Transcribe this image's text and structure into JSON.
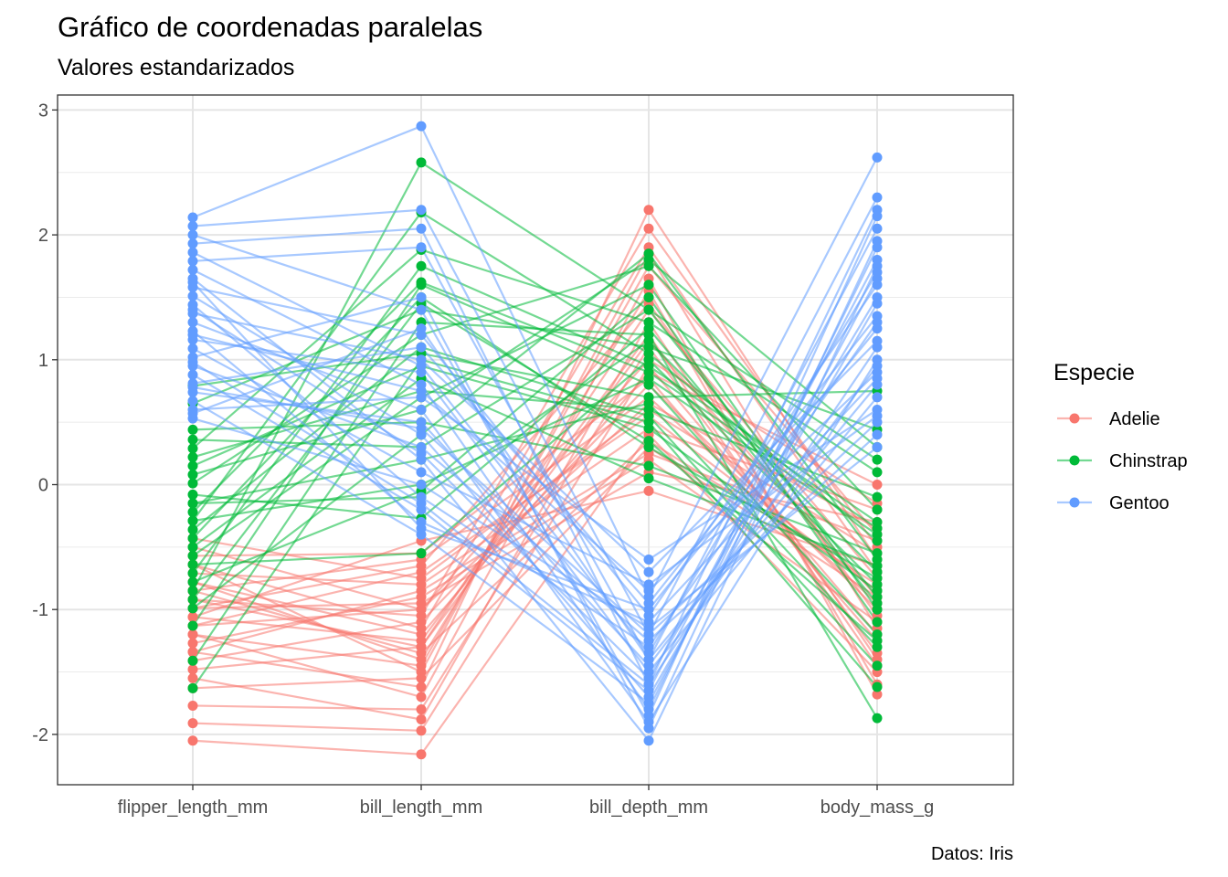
{
  "chart_data": {
    "type": "line",
    "title": "Gráfico de coordenadas paralelas",
    "subtitle": "Valores estandarizados",
    "caption": "Datos: Iris",
    "xlabel": "",
    "ylabel": "",
    "categories": [
      "flipper_length_mm",
      "bill_length_mm",
      "bill_depth_mm",
      "body_mass_g"
    ],
    "ylim": [
      -2.4,
      3.1
    ],
    "yticks": [
      3,
      2,
      1,
      0,
      -1,
      -2
    ],
    "grid": true,
    "legend": {
      "title": "Especie",
      "placement": "right",
      "entries": [
        {
          "name": "Adelie",
          "color": "#F8766D"
        },
        {
          "name": "Chinstrap",
          "color": "#00BA38"
        },
        {
          "name": "Gentoo",
          "color": "#619CFF"
        }
      ]
    },
    "series": [
      {
        "name": "Adelie",
        "color": "#F8766D",
        "lines": [
          [
            -2.05,
            -2.16,
            0.4,
            -1.5
          ],
          [
            -1.91,
            -1.97,
            0.95,
            -1.2
          ],
          [
            -1.77,
            -1.8,
            1.1,
            -1.35
          ],
          [
            -1.63,
            -1.55,
            0.3,
            -0.9
          ],
          [
            -1.48,
            -1.3,
            1.4,
            -0.75
          ],
          [
            -1.41,
            -1.1,
            0.8,
            -1.0
          ],
          [
            -1.34,
            -1.62,
            2.2,
            -0.6
          ],
          [
            -1.27,
            -0.9,
            0.2,
            -1.1
          ],
          [
            -1.2,
            -1.45,
            1.75,
            -0.4
          ],
          [
            -1.13,
            -0.7,
            0.55,
            -0.85
          ],
          [
            -1.06,
            -1.25,
            1.2,
            -1.45
          ],
          [
            -0.99,
            -0.95,
            0.1,
            -0.3
          ],
          [
            -0.92,
            -1.05,
            2.05,
            -0.5
          ],
          [
            -0.85,
            -0.6,
            0.7,
            -0.95
          ],
          [
            -0.78,
            -1.4,
            1.55,
            -1.6
          ],
          [
            -0.71,
            -0.8,
            0.45,
            -0.2
          ],
          [
            -0.64,
            -1.15,
            1.9,
            -0.7
          ],
          [
            -0.57,
            -0.55,
            0.85,
            -1.25
          ],
          [
            -1.55,
            -1.88,
            1.3,
            -1.4
          ],
          [
            -1.06,
            -0.45,
            -0.05,
            -0.65
          ],
          [
            -0.5,
            -1.0,
            1.0,
            -0.15
          ],
          [
            -0.43,
            -0.75,
            0.6,
            -0.55
          ],
          [
            -1.2,
            -1.7,
            1.65,
            -1.68
          ],
          [
            -0.85,
            -1.35,
            0.35,
            -0.8
          ],
          [
            -0.99,
            -0.65,
            1.45,
            -1.05
          ],
          [
            -0.78,
            -1.2,
            0.9,
            0.0
          ],
          [
            -1.34,
            -0.85,
            0.25,
            -0.45
          ],
          [
            -0.64,
            -1.5,
            1.85,
            -1.15
          ],
          [
            -1.13,
            -1.0,
            0.65,
            -0.35
          ],
          [
            -0.92,
            -1.3,
            1.15,
            -0.9
          ]
        ]
      },
      {
        "name": "Chinstrap",
        "color": "#00BA38",
        "lines": [
          [
            -1.63,
            1.0,
            0.5,
            -1.62
          ],
          [
            -1.41,
            1.3,
            1.2,
            -1.87
          ],
          [
            -1.13,
            1.6,
            0.8,
            -1.2
          ],
          [
            -0.99,
            0.4,
            1.85,
            -0.6
          ],
          [
            -0.85,
            2.58,
            1.4,
            -0.9
          ],
          [
            -0.71,
            1.75,
            0.95,
            -0.3
          ],
          [
            -0.57,
            0.7,
            1.6,
            -1.0
          ],
          [
            -0.43,
            1.5,
            0.3,
            -0.75
          ],
          [
            -0.29,
            2.18,
            1.05,
            -0.45
          ],
          [
            -0.15,
            0.2,
            0.65,
            -1.3
          ],
          [
            0.01,
            1.2,
            1.75,
            -0.2
          ],
          [
            0.15,
            0.95,
            0.45,
            -0.85
          ],
          [
            0.29,
            1.88,
            1.3,
            0.1
          ],
          [
            0.44,
            0.5,
            0.15,
            -0.55
          ],
          [
            0.65,
            1.4,
            1.1,
            0.44
          ],
          [
            0.79,
            1.05,
            0.7,
            0.75
          ],
          [
            -0.78,
            -0.05,
            1.5,
            -1.1
          ],
          [
            -0.5,
            0.85,
            0.05,
            -0.65
          ],
          [
            -0.22,
            1.62,
            0.9,
            -0.35
          ],
          [
            -0.08,
            -0.27,
            1.25,
            -0.95
          ],
          [
            0.08,
            0.6,
            1.8,
            0.3
          ],
          [
            -0.36,
            1.1,
            0.55,
            -1.45
          ],
          [
            -0.64,
            -0.55,
            1.0,
            -0.8
          ],
          [
            0.36,
            0.3,
            1.4,
            0.2
          ],
          [
            -0.92,
            1.45,
            0.35,
            -1.25
          ],
          [
            -0.29,
            0.0,
            0.85,
            -0.4
          ],
          [
            -0.15,
            -0.1,
            1.15,
            -0.7
          ],
          [
            0.22,
            0.75,
            0.6,
            -0.1
          ]
        ]
      },
      {
        "name": "Gentoo",
        "color": "#619CFF",
        "lines": [
          [
            2.14,
            2.87,
            -0.9,
            2.62
          ],
          [
            2.07,
            2.2,
            -1.2,
            2.3
          ],
          [
            1.93,
            2.05,
            -1.6,
            2.2
          ],
          [
            1.79,
            1.9,
            -1.4,
            2.05
          ],
          [
            1.72,
            0.8,
            -1.8,
            1.9
          ],
          [
            1.65,
            0.2,
            -2.05,
            1.75
          ],
          [
            1.58,
            1.2,
            -1.05,
            1.6
          ],
          [
            1.51,
            0.4,
            -1.7,
            1.45
          ],
          [
            1.44,
            -0.1,
            -1.3,
            1.3
          ],
          [
            1.37,
            1.0,
            -0.7,
            1.15
          ],
          [
            1.3,
            0.6,
            -1.9,
            1.0
          ],
          [
            1.23,
            -0.3,
            -1.1,
            0.85
          ],
          [
            1.16,
            0.9,
            -1.5,
            0.7
          ],
          [
            1.09,
            0.1,
            -0.8,
            0.55
          ],
          [
            1.02,
            1.5,
            -1.95,
            1.95
          ],
          [
            0.95,
            0.3,
            -1.25,
            0.4
          ],
          [
            0.88,
            -0.2,
            -1.65,
            1.8
          ],
          [
            0.81,
            1.1,
            -0.95,
            1.35
          ],
          [
            0.74,
            0.5,
            -1.45,
            0.95
          ],
          [
            0.67,
            -0.4,
            -1.75,
            1.65
          ],
          [
            0.6,
            0.7,
            -0.6,
            0.6
          ],
          [
            0.53,
            0.0,
            -1.15,
            0.3
          ],
          [
            2.0,
            1.4,
            -1.85,
            2.15
          ],
          [
            1.86,
            0.95,
            -1.35,
            1.7
          ],
          [
            1.62,
            -0.35,
            -1.0,
            1.25
          ],
          [
            1.4,
            0.25,
            -1.55,
            1.5
          ],
          [
            1.2,
            0.75,
            -0.85,
            0.9
          ],
          [
            0.98,
            -0.15,
            -1.6,
            1.1
          ],
          [
            0.78,
            0.45,
            -1.2,
            0.5
          ],
          [
            0.57,
            1.25,
            -1.4,
            0.8
          ]
        ]
      }
    ]
  }
}
